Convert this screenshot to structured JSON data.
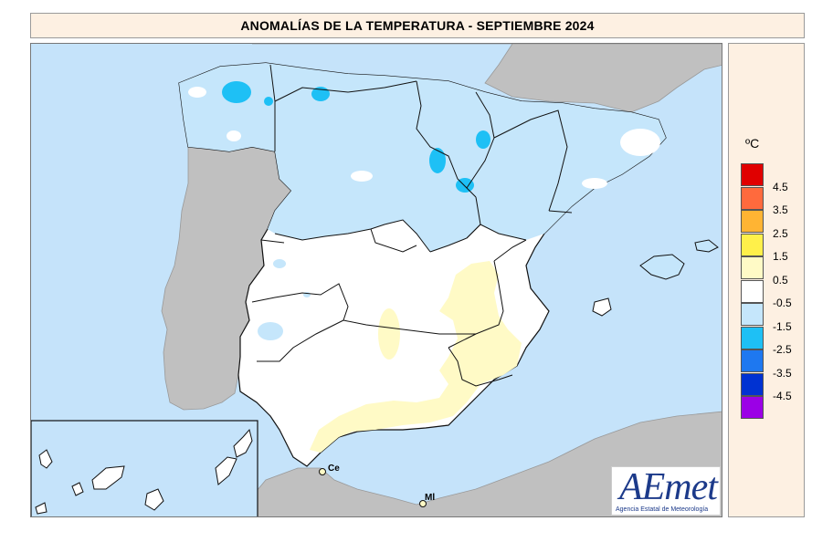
{
  "title": "ANOMALÍAS DE LA TEMPERATURA - SEPTIEMBRE 2024",
  "legend": {
    "unit": "ºC",
    "classes": [
      {
        "label": "4.5",
        "color": "#e00000"
      },
      {
        "label": "3.5",
        "color": "#ff6a3d"
      },
      {
        "label": "2.5",
        "color": "#ffb433"
      },
      {
        "label": "1.5",
        "color": "#fff04a"
      },
      {
        "label": "0.5",
        "color": "#fffac6"
      },
      {
        "label": "-0.5",
        "color": "#ffffff"
      },
      {
        "label": "-1.5",
        "color": "#c5e6fb"
      },
      {
        "label": "-2.5",
        "color": "#1ec0f5"
      },
      {
        "label": "-3.5",
        "color": "#1e78f0"
      },
      {
        "label": "-4.5",
        "color": "#0032d2"
      },
      {
        "label": "",
        "color": "#9b00e6"
      }
    ]
  },
  "map": {
    "city_labels": [
      "Ce",
      "Ml"
    ],
    "colors": {
      "sea": "#c5e3fa",
      "neighbor_land": "#c0c0c0",
      "border": "#111111"
    }
  },
  "logo": {
    "text": "AEmet",
    "subtitle": "Agencia Estatal de Meteorología"
  }
}
